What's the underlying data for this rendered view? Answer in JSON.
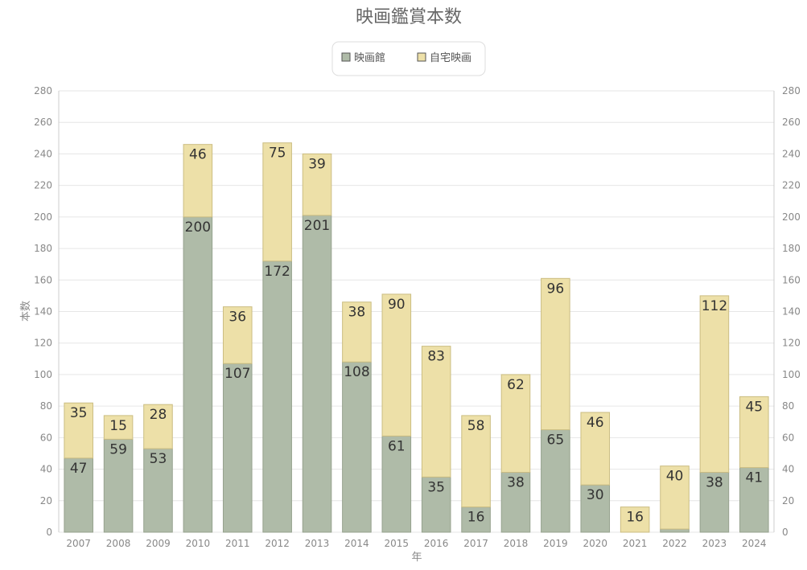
{
  "chart_data": {
    "type": "bar",
    "stacked": true,
    "title": "映画鑑賞本数",
    "xlabel": "年",
    "ylabel": "本数",
    "ylim": [
      0,
      280
    ],
    "ytick_step": 20,
    "y_axis_right": true,
    "legend_position": "top-center",
    "grid": true,
    "categories": [
      "2007",
      "2008",
      "2009",
      "2010",
      "2011",
      "2012",
      "2013",
      "2014",
      "2015",
      "2016",
      "2017",
      "2018",
      "2019",
      "2020",
      "2021",
      "2022",
      "2023",
      "2024"
    ],
    "series": [
      {
        "name": "映画館",
        "color": "#afbba8",
        "values": [
          47,
          59,
          53,
          200,
          107,
          172,
          201,
          108,
          61,
          35,
          16,
          38,
          65,
          30,
          0,
          2,
          38,
          41
        ],
        "labels": [
          "47",
          "59",
          "53",
          "200",
          "107",
          "172",
          "201",
          "108",
          "61",
          "35",
          "16",
          "38",
          "65",
          "30",
          "",
          "",
          "38",
          "41"
        ]
      },
      {
        "name": "自宅映画",
        "color": "#ede0a8",
        "values": [
          35,
          15,
          28,
          46,
          36,
          75,
          39,
          38,
          90,
          83,
          58,
          62,
          96,
          46,
          16,
          40,
          112,
          45
        ],
        "labels": [
          "35",
          "15",
          "28",
          "46",
          "36",
          "75",
          "39",
          "38",
          "90",
          "83",
          "58",
          "62",
          "96",
          "46",
          "16",
          "40",
          "112",
          "45"
        ]
      }
    ]
  }
}
